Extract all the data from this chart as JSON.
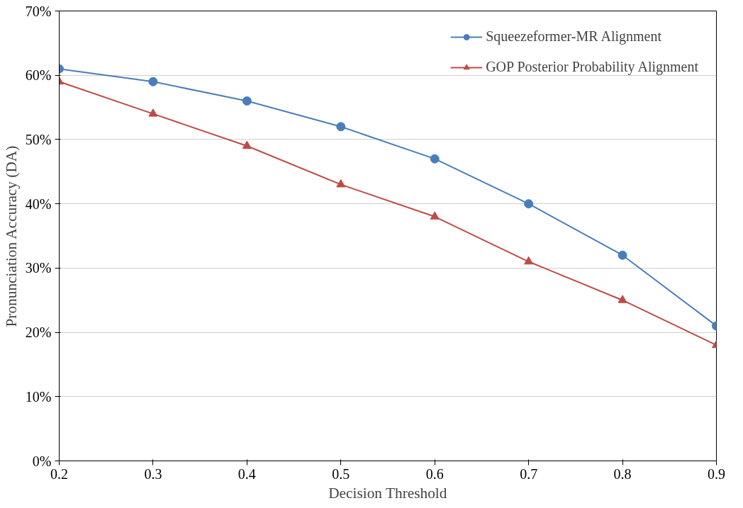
{
  "chart_data": {
    "type": "line",
    "xlabel": "Decision Threshold",
    "ylabel": "Pronunciation Accuracy (DA)",
    "x": [
      0.2,
      0.3,
      0.4,
      0.5,
      0.6,
      0.7,
      0.8,
      0.9
    ],
    "series": [
      {
        "name": "Squeezeformer-MR Alignment",
        "color": "#4a7ebb",
        "marker": "circle",
        "values": [
          61,
          59,
          56,
          52,
          47,
          40,
          32,
          21
        ]
      },
      {
        "name": "GOP Posterior Probability Alignment",
        "color": "#be4b48",
        "marker": "triangle",
        "values": [
          59,
          54,
          49,
          43,
          38,
          31,
          25,
          18
        ]
      }
    ],
    "xlim": [
      0.2,
      0.9
    ],
    "xticks": [
      0.2,
      0.3,
      0.4,
      0.5,
      0.6,
      0.7,
      0.8,
      0.9
    ],
    "ylim": [
      0,
      70
    ],
    "yticks": [
      {
        "value": 0,
        "label": "0%"
      },
      {
        "value": 10,
        "label": "10%"
      },
      {
        "value": 20,
        "label": "20%"
      },
      {
        "value": 30,
        "label": "30%"
      },
      {
        "value": 40,
        "label": "40%"
      },
      {
        "value": 50,
        "label": "50%"
      },
      {
        "value": 60,
        "label": "60%"
      },
      {
        "value": 70,
        "label": "70%"
      }
    ],
    "grid": "y",
    "legend": "top right",
    "line_style": "solid"
  }
}
